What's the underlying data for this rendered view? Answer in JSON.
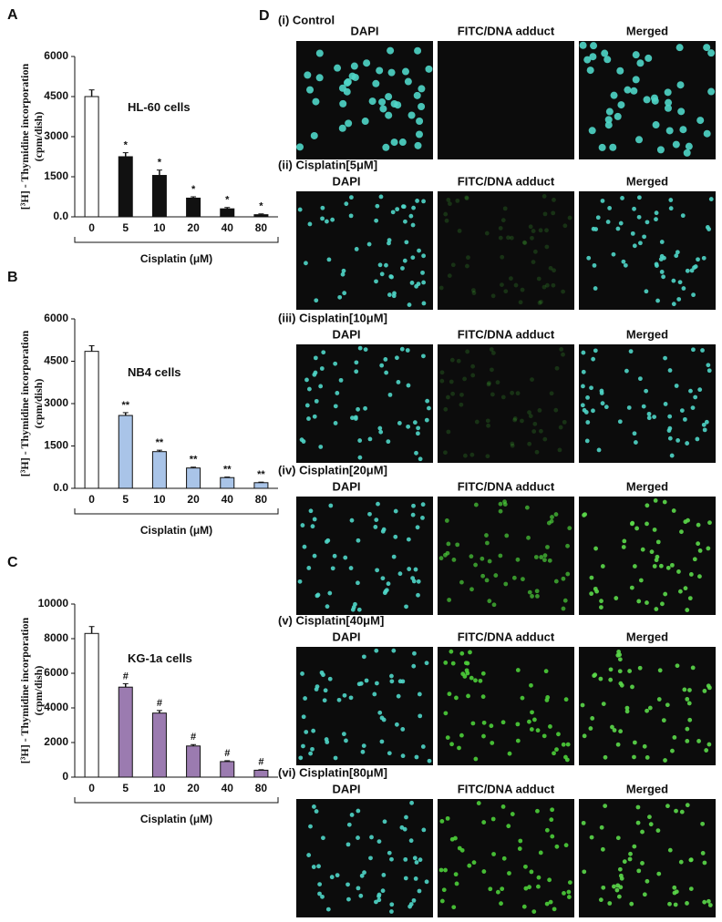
{
  "chart_data": [
    {
      "type": "bar",
      "label": "A",
      "annotation": "HL-60 cells",
      "ylabel": [
        "[³H] - Thymidine incorporation",
        "(cpm/dish)"
      ],
      "xlabel": "Cisplatin (μM)",
      "categories": [
        "0",
        "5",
        "10",
        "20",
        "40",
        "80"
      ],
      "values": [
        4500,
        2250,
        1550,
        700,
        300,
        80
      ],
      "errors": [
        250,
        150,
        200,
        50,
        50,
        30
      ],
      "markers": [
        null,
        "*",
        "*",
        "*",
        "*",
        "*"
      ],
      "colors": [
        "#ffffff",
        "#111111",
        "#111111",
        "#111111",
        "#111111",
        "#111111"
      ],
      "ylim": [
        0,
        6000
      ],
      "yticks": [
        {
          "value": 0,
          "label": "0.0"
        },
        1500,
        3000,
        4500,
        6000
      ]
    },
    {
      "type": "bar",
      "label": "B",
      "annotation": "NB4 cells",
      "ylabel": [
        "[³H] - Thymidine incorporation",
        "(cpm/dish)"
      ],
      "xlabel": "Cisplatin (μM)",
      "categories": [
        "0",
        "5",
        "10",
        "20",
        "40",
        "80"
      ],
      "values": [
        4850,
        2580,
        1300,
        720,
        380,
        200
      ],
      "errors": [
        200,
        100,
        50,
        30,
        20,
        20
      ],
      "markers": [
        null,
        "**",
        "**",
        "**",
        "**",
        "**"
      ],
      "colors": [
        "#ffffff",
        "#a9c4e8",
        "#a9c4e8",
        "#a9c4e8",
        "#a9c4e8",
        "#a9c4e8"
      ],
      "ylim": [
        0,
        6000
      ],
      "yticks": [
        {
          "value": 0,
          "label": "0.0"
        },
        1500,
        3000,
        4500,
        6000
      ]
    },
    {
      "type": "bar",
      "label": "C",
      "annotation": "KG-1a cells",
      "ylabel": [
        "[³H] - Thymidine incorporation",
        "(cpm/dish)"
      ],
      "xlabel": "Cisplatin (μM)",
      "categories": [
        "0",
        "5",
        "10",
        "20",
        "40",
        "80"
      ],
      "values": [
        8300,
        5200,
        3700,
        1800,
        900,
        400
      ],
      "errors": [
        400,
        200,
        150,
        80,
        50,
        30
      ],
      "markers": [
        null,
        "#",
        "#",
        "#",
        "#",
        "#"
      ],
      "colors": [
        "#ffffff",
        "#9b7bb0",
        "#9b7bb0",
        "#9b7bb0",
        "#9b7bb0",
        "#9b7bb0"
      ],
      "ylim": [
        0,
        10000
      ],
      "yticks": [
        0,
        2000,
        4000,
        6000,
        8000,
        10000
      ]
    }
  ],
  "panel_d": {
    "label": "D",
    "rows": [
      {
        "title": "(i) Control",
        "columns": [
          "DAPI",
          "FITC/DNA adduct",
          "Merged"
        ]
      },
      {
        "title": "(ii) Cisplatin[5μM]",
        "columns": [
          "DAPI",
          "FITC/DNA adduct",
          "Merged"
        ]
      },
      {
        "title": "(iii) Cisplatin[10μM]",
        "columns": [
          "DAPI",
          "FITC/DNA adduct",
          "Merged"
        ]
      },
      {
        "title": "(iv) Cisplatin[20μM]",
        "columns": [
          "DAPI",
          "FITC/DNA adduct",
          "Merged"
        ]
      },
      {
        "title": "(v) Cisplatin[40μM]",
        "columns": [
          "DAPI",
          "FITC/DNA adduct",
          "Merged"
        ]
      },
      {
        "title": "(vi) Cisplatin[80μM]",
        "columns": [
          "DAPI",
          "FITC/DNA adduct",
          "Merged"
        ]
      }
    ]
  }
}
